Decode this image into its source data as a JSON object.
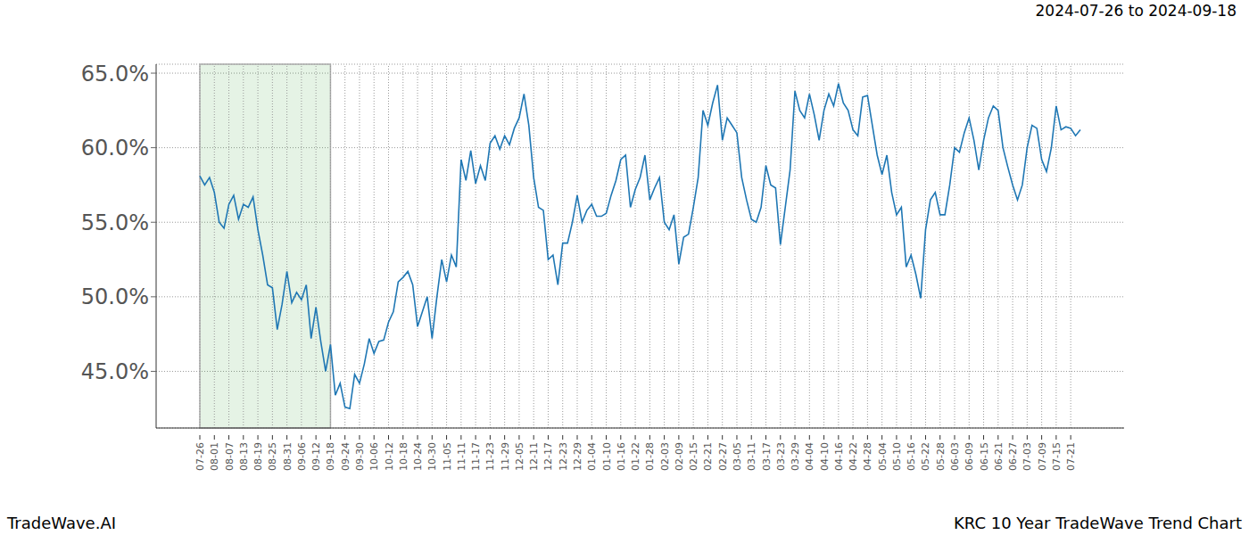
{
  "chart_data": {
    "type": "line",
    "title": "2024-07-26 to 2024-09-18",
    "annotations": [
      "TradeWave.AI",
      "KRC 10 Year TradeWave Trend Chart"
    ],
    "color": "#1f77b4",
    "grid": true,
    "highlight": {
      "x": [
        "07-26",
        "09-18"
      ]
    },
    "ylim": [
      41.2,
      65.6
    ],
    "yticks": [
      {
        "value": 45,
        "label": "45.0%"
      },
      {
        "value": 50,
        "label": "50.0%"
      },
      {
        "value": 55,
        "label": "55.0%"
      },
      {
        "value": 60,
        "label": "60.0%"
      },
      {
        "value": 65,
        "label": "65.0%"
      }
    ],
    "categories": [
      "07-26",
      null,
      null,
      "08-01",
      null,
      null,
      "08-07",
      null,
      null,
      "08-13",
      null,
      null,
      "08-19",
      null,
      null,
      "08-25",
      null,
      null,
      "08-31",
      null,
      null,
      "09-06",
      null,
      null,
      "09-12",
      null,
      null,
      "09-18",
      null,
      null,
      "09-24",
      null,
      null,
      "09-30",
      null,
      null,
      "10-06",
      null,
      null,
      "10-12",
      null,
      null,
      "10-18",
      null,
      null,
      "10-24",
      null,
      null,
      "10-30",
      null,
      null,
      "11-05",
      null,
      null,
      "11-11",
      null,
      null,
      "11-17",
      null,
      null,
      "11-23",
      null,
      null,
      "11-29",
      null,
      null,
      "12-05",
      null,
      null,
      "12-11",
      null,
      null,
      "12-17",
      null,
      null,
      "12-23",
      null,
      null,
      "12-29",
      null,
      null,
      "01-04",
      null,
      null,
      "01-10",
      null,
      null,
      "01-16",
      null,
      null,
      "01-22",
      null,
      null,
      "01-28",
      null,
      null,
      "02-03",
      null,
      null,
      "02-09",
      null,
      null,
      "02-15",
      null,
      null,
      "02-21",
      null,
      null,
      "02-27",
      null,
      null,
      "03-05",
      null,
      null,
      "03-11",
      null,
      null,
      "03-17",
      null,
      null,
      "03-23",
      null,
      null,
      "03-29",
      null,
      null,
      "04-04",
      null,
      null,
      "04-10",
      null,
      null,
      "04-16",
      null,
      null,
      "04-22",
      null,
      null,
      "04-28",
      null,
      null,
      "05-04",
      null,
      null,
      "05-10",
      null,
      null,
      "05-16",
      null,
      null,
      "05-22",
      null,
      null,
      "05-28",
      null,
      null,
      "06-03",
      null,
      null,
      "06-09",
      null,
      null,
      "06-15",
      null,
      null,
      "06-21",
      null,
      null,
      "06-27",
      null,
      null,
      "07-03",
      null,
      null,
      "07-09",
      null,
      null,
      "07-15",
      null,
      null,
      "07-21",
      null,
      null
    ],
    "values": [
      58.1,
      57.5,
      58.0,
      57.0,
      55.0,
      54.6,
      56.2,
      56.8,
      55.2,
      56.2,
      56.0,
      56.7,
      54.5,
      52.8,
      50.8,
      50.6,
      47.8,
      49.5,
      51.7,
      49.6,
      50.3,
      49.8,
      50.8,
      47.2,
      49.3,
      47.0,
      45.0,
      46.8,
      43.4,
      44.2,
      42.6,
      42.5,
      44.8,
      44.2,
      45.5,
      47.2,
      46.2,
      47.0,
      47.1,
      48.3,
      49.0,
      51.0,
      51.3,
      51.7,
      50.8,
      48.0,
      49.0,
      50.0,
      47.2,
      50.0,
      52.5,
      51.0,
      52.8,
      52.0,
      59.2,
      57.8,
      59.8,
      57.6,
      58.8,
      57.8,
      60.3,
      60.8,
      59.9,
      60.8,
      60.2,
      61.3,
      62.0,
      63.6,
      61.5,
      58.0,
      56.0,
      55.8,
      52.5,
      52.8,
      50.8,
      53.6,
      53.6,
      55.0,
      56.8,
      55.0,
      55.8,
      56.2,
      55.4,
      55.4,
      55.6,
      56.8,
      57.8,
      59.2,
      59.5,
      56.0,
      57.2,
      58.0,
      59.5,
      56.5,
      57.3,
      58.0,
      55.0,
      54.5,
      55.5,
      52.2,
      54.0,
      54.2,
      56.0,
      58.0,
      62.5,
      61.5,
      63.0,
      64.2,
      60.5,
      62.0,
      61.5,
      61.0,
      58.0,
      56.5,
      55.2,
      55.0,
      56.0,
      58.8,
      57.5,
      57.3,
      53.5,
      56.0,
      58.5,
      63.8,
      62.5,
      62.0,
      63.6,
      62.2,
      60.5,
      62.5,
      63.6,
      62.8,
      64.3,
      63.0,
      62.5,
      61.2,
      60.8,
      63.4,
      63.5,
      61.5,
      59.5,
      58.2,
      59.5,
      57.0,
      55.5,
      56.0,
      52.0,
      52.8,
      51.5,
      49.9,
      54.5,
      56.5,
      57.0,
      55.5,
      55.5,
      57.5,
      60.0,
      59.7,
      61.0,
      62.0,
      60.5,
      58.5,
      60.5,
      62.0,
      62.8,
      62.5,
      60.0,
      58.7,
      57.5,
      56.5,
      57.5,
      60.0,
      61.5,
      61.3,
      59.2,
      58.4,
      60.0,
      62.8,
      61.2,
      61.4,
      61.3,
      60.8,
      61.2
    ]
  }
}
